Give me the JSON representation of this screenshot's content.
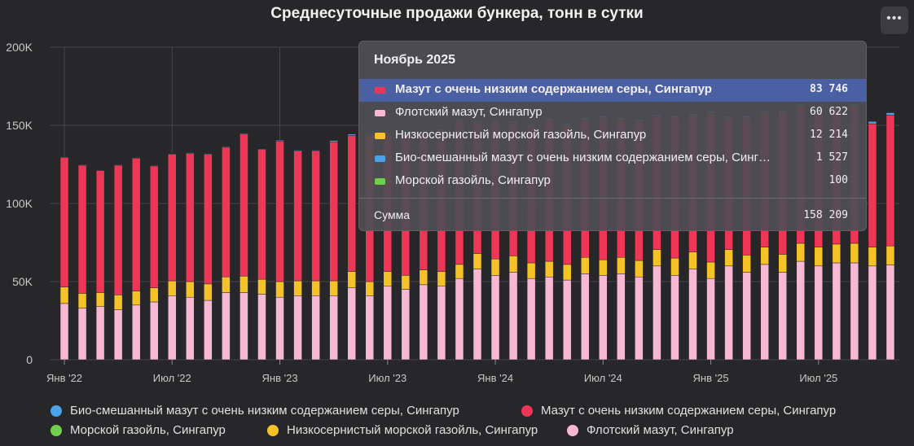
{
  "chart_data": {
    "type": "bar",
    "stacked": true,
    "title": "Среднесуточные продажи бункера, тонн в сутки",
    "ylim": [
      0,
      200000
    ],
    "yticks": [
      "0",
      "50K",
      "100K",
      "150K",
      "200K"
    ],
    "xtick_labels": [
      {
        "index": 0,
        "label": "Янв '22"
      },
      {
        "index": 6,
        "label": "Июл '22"
      },
      {
        "index": 12,
        "label": "Янв '23"
      },
      {
        "index": 18,
        "label": "Июл '23"
      },
      {
        "index": 24,
        "label": "Янв '24"
      },
      {
        "index": 30,
        "label": "Июл '24"
      },
      {
        "index": 36,
        "label": "Янв '25"
      },
      {
        "index": 42,
        "label": "Июл '25"
      }
    ],
    "categories": [
      "2022-01",
      "2022-02",
      "2022-03",
      "2022-04",
      "2022-05",
      "2022-06",
      "2022-07",
      "2022-08",
      "2022-09",
      "2022-10",
      "2022-11",
      "2022-12",
      "2023-01",
      "2023-02",
      "2023-03",
      "2023-04",
      "2023-05",
      "2023-06",
      "2023-07",
      "2023-08",
      "2023-09",
      "2023-10",
      "2023-11",
      "2023-12",
      "2024-01",
      "2024-02",
      "2024-03",
      "2024-04",
      "2024-05",
      "2024-06",
      "2024-07",
      "2024-08",
      "2024-09",
      "2024-10",
      "2024-11",
      "2024-12",
      "2025-01",
      "2025-02",
      "2025-03",
      "2025-04",
      "2025-05",
      "2025-06",
      "2025-07",
      "2025-08",
      "2025-09",
      "2025-10",
      "2025-11"
    ],
    "series": [
      {
        "name": "Флотский мазут, Сингапур",
        "color": "#f7b8d4",
        "values": [
          36000,
          33000,
          34000,
          32000,
          35000,
          37000,
          41000,
          40000,
          38000,
          43000,
          43000,
          42000,
          40000,
          41000,
          41000,
          41000,
          46000,
          41000,
          47000,
          45000,
          48000,
          47000,
          52000,
          58000,
          54000,
          56000,
          52000,
          53000,
          51000,
          55000,
          54000,
          55000,
          53000,
          60000,
          54000,
          58000,
          52000,
          60000,
          56000,
          61000,
          56000,
          63000,
          60000,
          62000,
          62000,
          60000,
          60622
        ]
      },
      {
        "name": "Низкосернистый морской газойль, Сингапур",
        "color": "#f5c328",
        "values": [
          10500,
          9500,
          9000,
          9500,
          9000,
          9000,
          9500,
          10000,
          10500,
          10000,
          10500,
          9500,
          10000,
          9500,
          9500,
          9500,
          10500,
          9000,
          9500,
          9000,
          9500,
          9500,
          9000,
          10000,
          10500,
          10500,
          10000,
          10000,
          10000,
          10500,
          10000,
          10500,
          10500,
          10500,
          11000,
          11000,
          10500,
          10500,
          11000,
          11000,
          11500,
          11500,
          12000,
          12000,
          12500,
          12000,
          12214
        ]
      },
      {
        "name": "Мазут с очень низким содержанием серы, Сингапур",
        "color": "#ee3657",
        "values": [
          83000,
          82000,
          78000,
          83000,
          85000,
          78000,
          81000,
          82000,
          83000,
          83000,
          91000,
          83000,
          90000,
          83000,
          83000,
          89000,
          87000,
          94000,
          88000,
          91000,
          87000,
          90000,
          92000,
          84000,
          87000,
          85000,
          87000,
          90000,
          89000,
          88000,
          91000,
          88000,
          89000,
          85000,
          90000,
          87000,
          95000,
          84000,
          88000,
          86000,
          91000,
          88000,
          86000,
          86000,
          88000,
          79000,
          83746
        ]
      },
      {
        "name": "Био-смешанный мазут с очень низким содержанием серы, Сингапур",
        "color": "#4aa3e8",
        "values": [
          400,
          400,
          400,
          400,
          400,
          400,
          400,
          500,
          500,
          500,
          500,
          500,
          500,
          600,
          600,
          800,
          900,
          900,
          1000,
          1000,
          1000,
          1100,
          1100,
          1100,
          1200,
          1200,
          1200,
          1200,
          1200,
          1300,
          1300,
          1300,
          1300,
          1300,
          1300,
          1400,
          1400,
          1400,
          1400,
          1400,
          1400,
          1500,
          1500,
          1500,
          1500,
          1500,
          1527
        ]
      },
      {
        "name": "Морской газойль, Сингапур",
        "color": "#6fd04e",
        "values": [
          100,
          100,
          100,
          100,
          100,
          100,
          100,
          100,
          100,
          100,
          100,
          100,
          100,
          100,
          100,
          100,
          100,
          100,
          100,
          100,
          100,
          100,
          100,
          100,
          100,
          100,
          100,
          100,
          100,
          100,
          100,
          100,
          100,
          100,
          100,
          100,
          100,
          100,
          100,
          100,
          100,
          100,
          100,
          100,
          100,
          100,
          100
        ]
      }
    ],
    "grid": true,
    "legend_position": "bottom"
  },
  "tooltip": {
    "title": "Ноябрь 2025",
    "rows": [
      {
        "label": "Мазут с очень низким содержанием серы, Сингапур",
        "value": "83 746",
        "color": "#ee3657"
      },
      {
        "label": "Флотский мазут, Сингапур",
        "value": "60 622",
        "color": "#f7b8d4"
      },
      {
        "label": "Низкосернистый морской газойль, Сингапур",
        "value": "12 214",
        "color": "#f5c328"
      },
      {
        "label": "Био-смешанный мазут с очень низким содержанием серы, Синг…",
        "value": "1 527",
        "color": "#4aa3e8"
      },
      {
        "label": "Морской газойль, Сингапур",
        "value": "100",
        "color": "#6fd04e"
      }
    ],
    "sum_label": "Сумма",
    "sum_value": "158 209"
  },
  "legend": [
    {
      "label": "Био-смешанный мазут с очень низким содержанием серы, Сингапур",
      "color": "#4aa3e8"
    },
    {
      "label": "Мазут с очень низким содержанием серы, Сингапур",
      "color": "#ee3657"
    },
    {
      "label": "Морской газойль, Сингапур",
      "color": "#6fd04e"
    },
    {
      "label": "Низкосернистый морской газойль, Сингапур",
      "color": "#f5c328"
    },
    {
      "label": "Флотский мазут, Сингапур",
      "color": "#f7b8d4"
    }
  ],
  "menu_icon": "more-horizontal-icon",
  "menu_glyph": "•••"
}
